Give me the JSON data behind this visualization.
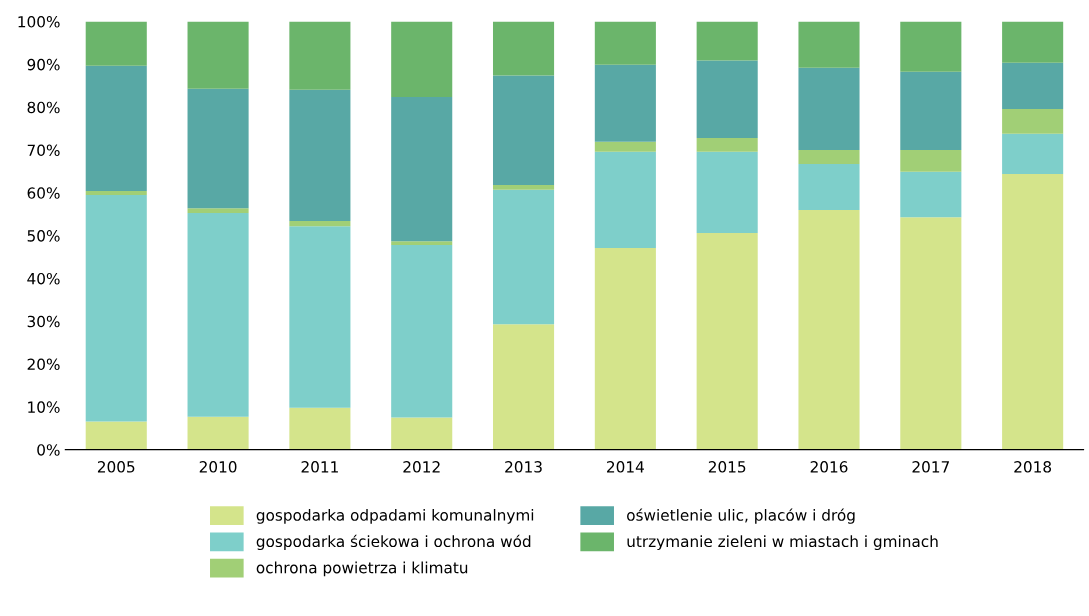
{
  "chart_data": {
    "type": "bar",
    "stacked": true,
    "legend": "bottom",
    "categories": [
      "2005",
      "2010",
      "2011",
      "2012",
      "2013",
      "2014",
      "2015",
      "2016",
      "2017",
      "2018"
    ],
    "series": [
      {
        "name": "gospodarka odpadami komunalnymi",
        "color": "#d4e48b",
        "values": [
          6.6,
          7.7,
          9.8,
          7.5,
          29.3,
          47.1,
          50.6,
          56.0,
          54.3,
          64.4
        ]
      },
      {
        "name": "gospodarka ściekowa i ochrona wód",
        "color": "#7ecfca",
        "values": [
          52.9,
          47.6,
          42.4,
          40.3,
          31.4,
          22.5,
          19.0,
          10.7,
          10.6,
          9.4
        ]
      },
      {
        "name": "ochrona powietrza i klimatu",
        "color": "#a1cf76",
        "values": [
          0.9,
          1.1,
          1.2,
          0.9,
          1.1,
          2.3,
          3.2,
          3.3,
          5.1,
          5.8
        ]
      },
      {
        "name": "oświetlenie ulic, placów i dróg",
        "color": "#58a8a5",
        "values": [
          29.3,
          27.9,
          30.7,
          33.7,
          25.6,
          18.0,
          18.1,
          19.2,
          18.3,
          10.8
        ]
      },
      {
        "name": "utrzymanie zieleni w miastach i gminach",
        "color": "#6bb56b",
        "values": [
          10.3,
          15.7,
          15.9,
          17.6,
          12.6,
          10.1,
          9.1,
          10.8,
          11.7,
          9.6
        ]
      }
    ],
    "ylim": [
      0,
      100
    ],
    "yticks": [
      {
        "value": 0,
        "label": "0%"
      },
      {
        "value": 10,
        "label": "10%"
      },
      {
        "value": 20,
        "label": "20%"
      },
      {
        "value": 30,
        "label": "30%"
      },
      {
        "value": 40,
        "label": "40%"
      },
      {
        "value": 50,
        "label": "50%"
      },
      {
        "value": 60,
        "label": "60%"
      },
      {
        "value": 70,
        "label": "70%"
      },
      {
        "value": 80,
        "label": "80%"
      },
      {
        "value": 90,
        "label": "90%"
      },
      {
        "value": 100,
        "label": "100%"
      }
    ]
  }
}
